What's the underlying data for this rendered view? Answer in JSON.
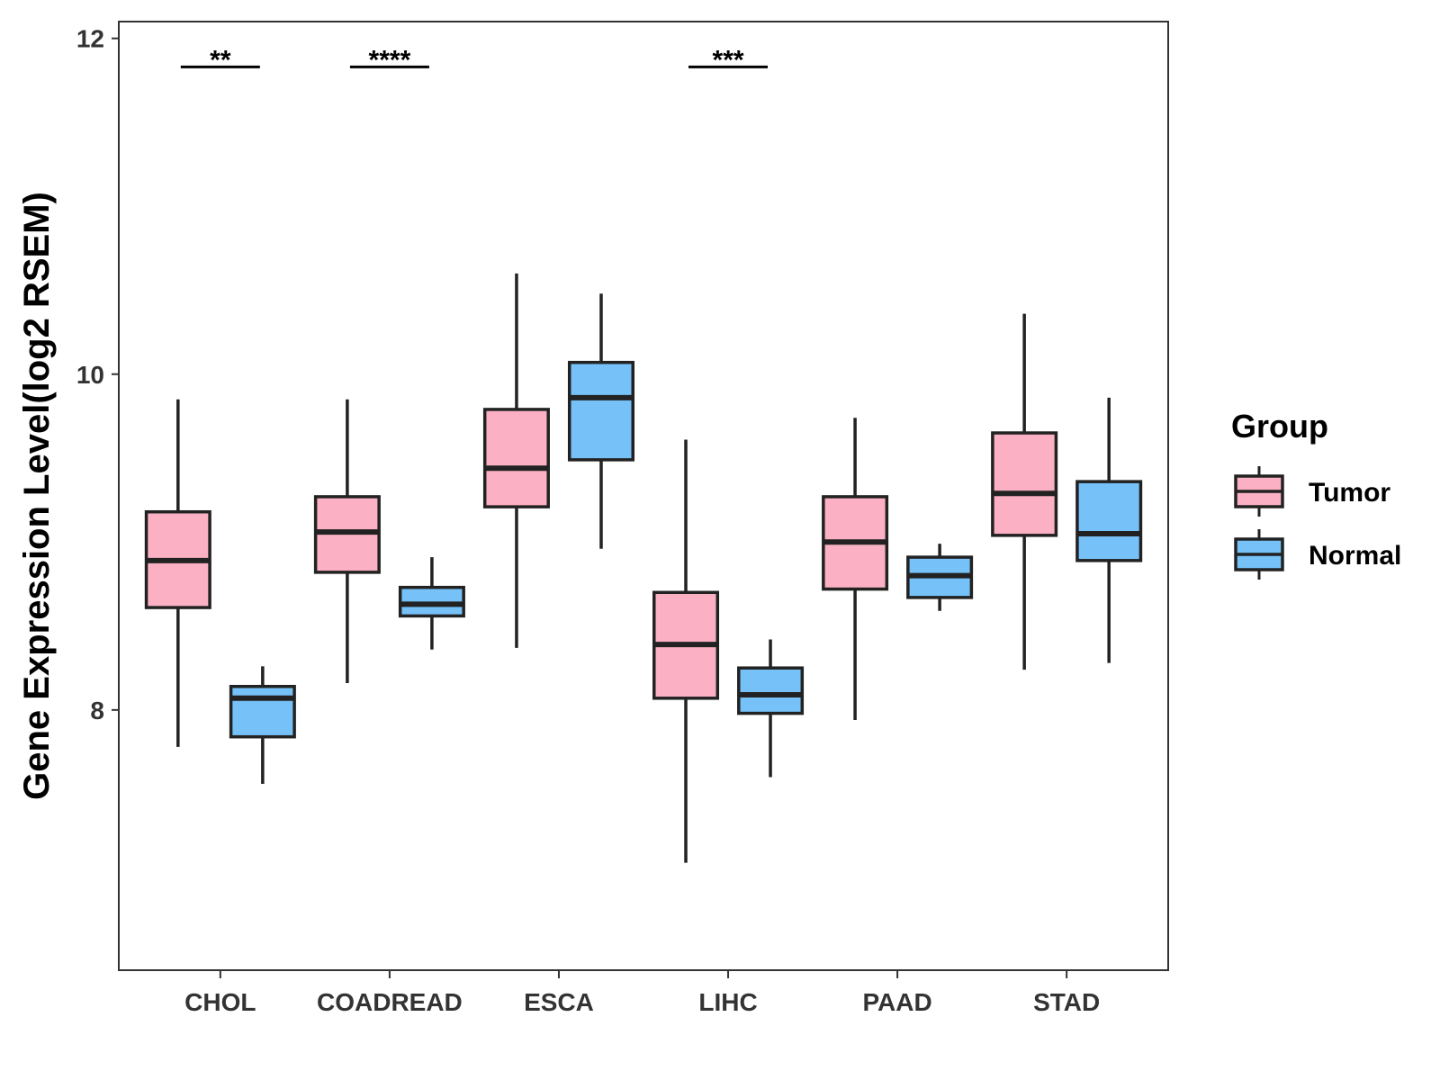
{
  "chart_data": {
    "type": "boxplot",
    "title": "",
    "xlabel": "",
    "ylabel": "Gene Expression Level(log2 RSEM)",
    "ylim": [
      6.45,
      12.1
    ],
    "yticks": [
      8,
      10,
      12
    ],
    "grid": false,
    "legend": {
      "title": "Group",
      "position": "right"
    },
    "categories": [
      "CHOL",
      "COADREAD",
      "ESCA",
      "LIHC",
      "PAAD",
      "STAD"
    ],
    "series": [
      {
        "name": "Tumor",
        "color": "#FBB1C3",
        "boxes": [
          {
            "whisker_low": 7.78,
            "q1": 8.61,
            "median": 8.89,
            "q3": 9.18,
            "whisker_high": 9.85
          },
          {
            "whisker_low": 8.16,
            "q1": 8.82,
            "median": 9.06,
            "q3": 9.27,
            "whisker_high": 9.85
          },
          {
            "whisker_low": 8.37,
            "q1": 9.21,
            "median": 9.44,
            "q3": 9.79,
            "whisker_high": 10.6
          },
          {
            "whisker_low": 7.09,
            "q1": 8.07,
            "median": 8.39,
            "q3": 8.7,
            "whisker_high": 9.61
          },
          {
            "whisker_low": 7.94,
            "q1": 8.72,
            "median": 9.0,
            "q3": 9.27,
            "whisker_high": 9.74
          },
          {
            "whisker_low": 8.24,
            "q1": 9.04,
            "median": 9.29,
            "q3": 9.65,
            "whisker_high": 10.36
          }
        ]
      },
      {
        "name": "Normal",
        "color": "#75C1F8",
        "boxes": [
          {
            "whisker_low": 7.56,
            "q1": 7.84,
            "median": 8.07,
            "q3": 8.14,
            "whisker_high": 8.26
          },
          {
            "whisker_low": 8.36,
            "q1": 8.56,
            "median": 8.63,
            "q3": 8.73,
            "whisker_high": 8.91
          },
          {
            "whisker_low": 8.96,
            "q1": 9.49,
            "median": 9.86,
            "q3": 10.07,
            "whisker_high": 10.48
          },
          {
            "whisker_low": 7.6,
            "q1": 7.98,
            "median": 8.09,
            "q3": 8.25,
            "whisker_high": 8.42
          },
          {
            "whisker_low": 8.59,
            "q1": 8.67,
            "median": 8.8,
            "q3": 8.91,
            "whisker_high": 8.99
          },
          {
            "whisker_low": 8.28,
            "q1": 8.89,
            "median": 9.05,
            "q3": 9.36,
            "whisker_high": 9.86
          }
        ]
      }
    ],
    "significance": [
      {
        "category": "CHOL",
        "label": "**",
        "y": 11.83
      },
      {
        "category": "COADREAD",
        "label": "****",
        "y": 11.83
      },
      {
        "category": "LIHC",
        "label": "***",
        "y": 11.83
      }
    ]
  }
}
